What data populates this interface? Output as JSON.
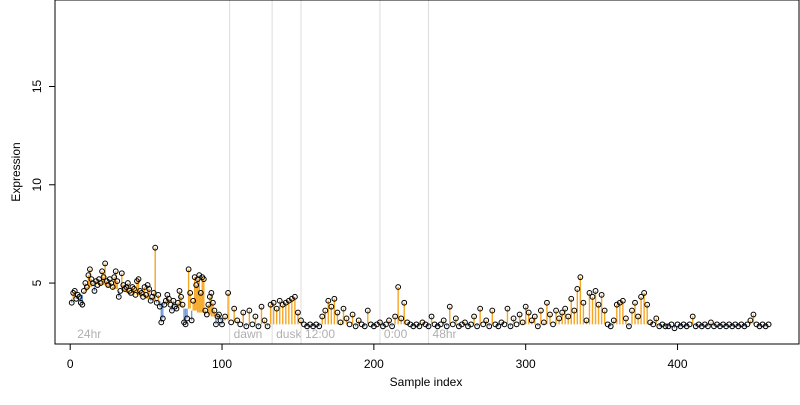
{
  "chart_data": {
    "type": "scatter",
    "title": "",
    "xlabel": "Sample index",
    "ylabel": "Expression",
    "xlim": [
      -10,
      480
    ],
    "ylim": [
      1.9,
      19.4
    ],
    "xticks": [
      0,
      100,
      200,
      300,
      400
    ],
    "yticks": [
      5,
      10,
      15
    ],
    "grid": false,
    "baseline_note": "lollipop stems drawn from a per-sample baseline; orange = above baseline, blue = below",
    "colors": {
      "up": "#f5a623",
      "down": "#6f9bd8",
      "point_stroke": "#000000",
      "phase_line": "#dddddd",
      "phase_text": "#b0b0b0"
    },
    "phases": [
      {
        "label": "24hr",
        "x": 2,
        "line": false
      },
      {
        "label": "dawn",
        "x": 105,
        "line": true
      },
      {
        "label": "dusk",
        "x": 133,
        "line": true
      },
      {
        "label": "12:00",
        "x": 152,
        "line": true
      },
      {
        "label": "0:00",
        "x": 204,
        "line": true
      },
      {
        "label": "48hr",
        "x": 236,
        "line": true
      }
    ],
    "points": [
      [
        1,
        4.0,
        4.2
      ],
      [
        2,
        4.5,
        4.2
      ],
      [
        3,
        4.6,
        4.3
      ],
      [
        4,
        4.2,
        4.3
      ],
      [
        5,
        4.4,
        4.3
      ],
      [
        6,
        4.3,
        4.4
      ],
      [
        7,
        4.0,
        4.4
      ],
      [
        8,
        3.9,
        4.4
      ],
      [
        9,
        4.6,
        4.5
      ],
      [
        10,
        5.0,
        4.6
      ],
      [
        11,
        4.8,
        4.6
      ],
      [
        12,
        5.4,
        4.7
      ],
      [
        13,
        5.7,
        4.8
      ],
      [
        14,
        5.2,
        4.8
      ],
      [
        15,
        5.0,
        4.9
      ],
      [
        16,
        4.6,
        4.9
      ],
      [
        17,
        5.1,
        4.9
      ],
      [
        18,
        4.9,
        4.9
      ],
      [
        19,
        5.2,
        4.9
      ],
      [
        20,
        5.0,
        4.9
      ],
      [
        21,
        5.6,
        4.9
      ],
      [
        22,
        5.3,
        4.9
      ],
      [
        23,
        6.0,
        4.9
      ],
      [
        24,
        5.1,
        4.8
      ],
      [
        25,
        4.9,
        4.8
      ],
      [
        26,
        5.2,
        4.8
      ],
      [
        27,
        5.0,
        4.8
      ],
      [
        28,
        4.8,
        4.7
      ],
      [
        29,
        5.3,
        4.7
      ],
      [
        30,
        5.6,
        4.7
      ],
      [
        31,
        5.1,
        4.7
      ],
      [
        32,
        4.3,
        4.6
      ],
      [
        33,
        4.6,
        4.6
      ],
      [
        34,
        5.5,
        4.6
      ],
      [
        35,
        4.9,
        4.6
      ],
      [
        36,
        4.7,
        4.6
      ],
      [
        37,
        4.8,
        4.5
      ],
      [
        38,
        5.0,
        4.5
      ],
      [
        39,
        4.6,
        4.5
      ],
      [
        40,
        4.5,
        4.5
      ],
      [
        41,
        4.8,
        4.5
      ],
      [
        42,
        4.7,
        4.4
      ],
      [
        43,
        4.4,
        4.4
      ],
      [
        44,
        5.1,
        4.4
      ],
      [
        45,
        5.2,
        4.4
      ],
      [
        46,
        4.6,
        4.3
      ],
      [
        47,
        4.5,
        4.3
      ],
      [
        48,
        4.3,
        4.3
      ],
      [
        49,
        4.8,
        4.3
      ],
      [
        50,
        4.4,
        4.2
      ],
      [
        51,
        4.9,
        4.2
      ],
      [
        52,
        4.7,
        4.2
      ],
      [
        53,
        4.1,
        4.2
      ],
      [
        54,
        4.3,
        4.2
      ],
      [
        55,
        4.5,
        4.1
      ],
      [
        56,
        6.8,
        4.1
      ],
      [
        57,
        4.0,
        4.1
      ],
      [
        58,
        4.4,
        4.1
      ],
      [
        59,
        3.8,
        4.1
      ],
      [
        60,
        3.0,
        4.0
      ],
      [
        61,
        3.2,
        4.0
      ],
      [
        62,
        3.9,
        4.0
      ],
      [
        63,
        4.1,
        4.0
      ],
      [
        64,
        4.4,
        4.0
      ],
      [
        65,
        4.2,
        3.9
      ],
      [
        66,
        3.9,
        3.9
      ],
      [
        67,
        3.6,
        3.9
      ],
      [
        68,
        4.1,
        3.9
      ],
      [
        69,
        3.8,
        3.9
      ],
      [
        70,
        3.7,
        3.8
      ],
      [
        71,
        4.0,
        3.8
      ],
      [
        72,
        4.6,
        3.8
      ],
      [
        73,
        4.3,
        3.8
      ],
      [
        74,
        3.9,
        3.8
      ],
      [
        75,
        3.0,
        3.7
      ],
      [
        76,
        2.9,
        3.7
      ],
      [
        77,
        3.2,
        3.7
      ],
      [
        78,
        5.7,
        3.7
      ],
      [
        79,
        4.5,
        3.7
      ],
      [
        80,
        3.1,
        3.6
      ],
      [
        81,
        4.1,
        3.6
      ],
      [
        82,
        5.3,
        3.6
      ],
      [
        83,
        4.9,
        3.6
      ],
      [
        84,
        5.2,
        3.5
      ],
      [
        85,
        5.4,
        3.5
      ],
      [
        86,
        4.5,
        3.5
      ],
      [
        87,
        5.3,
        3.5
      ],
      [
        88,
        5.2,
        3.5
      ],
      [
        89,
        3.6,
        3.4
      ],
      [
        90,
        3.4,
        3.4
      ],
      [
        91,
        3.9,
        3.4
      ],
      [
        92,
        4.3,
        3.4
      ],
      [
        93,
        4.5,
        3.3
      ],
      [
        94,
        4.0,
        3.3
      ],
      [
        95,
        3.6,
        3.3
      ],
      [
        96,
        2.9,
        3.3
      ],
      [
        97,
        3.3,
        3.2
      ],
      [
        98,
        3.4,
        3.2
      ],
      [
        99,
        3.1,
        3.2
      ],
      [
        100,
        2.9,
        3.2
      ],
      [
        102,
        3.3,
        3.1
      ],
      [
        104,
        4.5,
        3.1
      ],
      [
        106,
        3.0,
        3.0
      ],
      [
        108,
        3.7,
        3.0
      ],
      [
        110,
        3.1,
        3.0
      ],
      [
        112,
        2.9,
        2.9
      ],
      [
        114,
        3.5,
        2.9
      ],
      [
        116,
        2.8,
        2.9
      ],
      [
        118,
        3.6,
        2.9
      ],
      [
        120,
        2.9,
        2.9
      ],
      [
        122,
        3.3,
        2.9
      ],
      [
        124,
        2.8,
        2.9
      ],
      [
        126,
        3.8,
        2.9
      ],
      [
        128,
        3.1,
        2.9
      ],
      [
        130,
        2.8,
        2.9
      ],
      [
        132,
        3.9,
        2.9
      ],
      [
        134,
        4.0,
        2.9
      ],
      [
        136,
        3.7,
        2.9
      ],
      [
        138,
        4.1,
        2.9
      ],
      [
        140,
        3.9,
        2.9
      ],
      [
        142,
        4.0,
        2.9
      ],
      [
        144,
        4.1,
        2.9
      ],
      [
        146,
        4.2,
        2.9
      ],
      [
        148,
        4.3,
        2.9
      ],
      [
        150,
        3.5,
        2.9
      ],
      [
        152,
        3.1,
        2.9
      ],
      [
        154,
        2.9,
        2.9
      ],
      [
        156,
        2.8,
        2.9
      ],
      [
        158,
        2.9,
        2.9
      ],
      [
        160,
        2.8,
        2.9
      ],
      [
        162,
        2.9,
        2.9
      ],
      [
        164,
        2.8,
        2.9
      ],
      [
        166,
        3.3,
        2.9
      ],
      [
        168,
        3.6,
        2.9
      ],
      [
        170,
        4.1,
        2.9
      ],
      [
        172,
        3.8,
        2.9
      ],
      [
        174,
        4.2,
        2.9
      ],
      [
        176,
        3.5,
        2.9
      ],
      [
        178,
        3.0,
        2.9
      ],
      [
        180,
        3.7,
        2.9
      ],
      [
        182,
        3.2,
        2.9
      ],
      [
        184,
        2.9,
        2.9
      ],
      [
        186,
        3.4,
        2.9
      ],
      [
        188,
        2.8,
        2.9
      ],
      [
        190,
        3.1,
        2.9
      ],
      [
        192,
        2.9,
        2.9
      ],
      [
        194,
        2.8,
        2.9
      ],
      [
        196,
        3.6,
        2.9
      ],
      [
        198,
        2.9,
        2.9
      ],
      [
        200,
        2.8,
        2.9
      ],
      [
        202,
        2.9,
        2.9
      ],
      [
        204,
        3.0,
        2.9
      ],
      [
        206,
        2.8,
        2.9
      ],
      [
        208,
        2.9,
        2.9
      ],
      [
        210,
        3.1,
        2.9
      ],
      [
        212,
        2.8,
        2.9
      ],
      [
        214,
        3.3,
        2.9
      ],
      [
        216,
        4.8,
        2.9
      ],
      [
        218,
        3.2,
        2.9
      ],
      [
        220,
        4.0,
        2.9
      ],
      [
        222,
        3.0,
        2.9
      ],
      [
        224,
        2.9,
        2.9
      ],
      [
        226,
        2.8,
        2.9
      ],
      [
        228,
        2.9,
        2.9
      ],
      [
        230,
        2.8,
        2.9
      ],
      [
        232,
        3.0,
        2.9
      ],
      [
        234,
        2.9,
        2.9
      ],
      [
        236,
        2.8,
        2.9
      ],
      [
        238,
        3.3,
        2.9
      ],
      [
        240,
        2.9,
        2.9
      ],
      [
        242,
        2.8,
        2.9
      ],
      [
        244,
        2.9,
        2.9
      ],
      [
        246,
        3.1,
        2.9
      ],
      [
        248,
        2.8,
        2.9
      ],
      [
        250,
        3.8,
        2.9
      ],
      [
        252,
        2.9,
        2.9
      ],
      [
        254,
        3.2,
        2.9
      ],
      [
        256,
        2.8,
        2.9
      ],
      [
        258,
        2.9,
        2.9
      ],
      [
        260,
        3.0,
        2.9
      ],
      [
        262,
        2.8,
        2.9
      ],
      [
        264,
        2.9,
        2.9
      ],
      [
        266,
        3.3,
        2.9
      ],
      [
        268,
        2.8,
        2.9
      ],
      [
        270,
        3.7,
        2.9
      ],
      [
        272,
        2.9,
        2.9
      ],
      [
        274,
        3.1,
        2.9
      ],
      [
        276,
        2.8,
        2.9
      ],
      [
        278,
        3.6,
        2.9
      ],
      [
        280,
        2.9,
        2.9
      ],
      [
        282,
        2.8,
        2.9
      ],
      [
        284,
        3.0,
        2.9
      ],
      [
        286,
        2.9,
        2.9
      ],
      [
        288,
        3.7,
        2.9
      ],
      [
        290,
        2.8,
        2.9
      ],
      [
        292,
        3.2,
        2.9
      ],
      [
        294,
        2.9,
        2.9
      ],
      [
        296,
        3.4,
        2.9
      ],
      [
        298,
        3.0,
        2.9
      ],
      [
        300,
        3.8,
        2.9
      ],
      [
        302,
        3.5,
        2.9
      ],
      [
        304,
        3.1,
        2.9
      ],
      [
        306,
        3.3,
        2.9
      ],
      [
        308,
        2.8,
        2.9
      ],
      [
        310,
        3.6,
        2.9
      ],
      [
        312,
        3.0,
        2.9
      ],
      [
        314,
        4.0,
        2.9
      ],
      [
        316,
        3.4,
        2.9
      ],
      [
        318,
        2.9,
        2.9
      ],
      [
        320,
        3.6,
        2.9
      ],
      [
        322,
        3.2,
        2.9
      ],
      [
        324,
        3.5,
        2.9
      ],
      [
        326,
        3.7,
        2.9
      ],
      [
        328,
        3.3,
        2.9
      ],
      [
        330,
        4.2,
        2.9
      ],
      [
        332,
        3.6,
        2.9
      ],
      [
        334,
        4.7,
        2.9
      ],
      [
        336,
        5.3,
        2.9
      ],
      [
        338,
        4.0,
        2.9
      ],
      [
        340,
        3.1,
        2.9
      ],
      [
        342,
        4.5,
        2.9
      ],
      [
        344,
        4.3,
        2.9
      ],
      [
        346,
        4.6,
        2.9
      ],
      [
        348,
        3.9,
        2.9
      ],
      [
        350,
        4.4,
        2.9
      ],
      [
        352,
        3.6,
        2.9
      ],
      [
        354,
        2.9,
        2.9
      ],
      [
        356,
        2.8,
        2.9
      ],
      [
        358,
        3.1,
        2.9
      ],
      [
        360,
        3.9,
        2.9
      ],
      [
        362,
        4.0,
        2.9
      ],
      [
        364,
        4.1,
        2.9
      ],
      [
        366,
        3.2,
        2.9
      ],
      [
        368,
        2.8,
        2.9
      ],
      [
        370,
        3.6,
        2.9
      ],
      [
        372,
        4.0,
        2.9
      ],
      [
        374,
        3.3,
        2.9
      ],
      [
        376,
        4.3,
        2.9
      ],
      [
        378,
        4.5,
        2.9
      ],
      [
        380,
        3.9,
        2.9
      ],
      [
        382,
        3.0,
        2.9
      ],
      [
        384,
        2.9,
        2.9
      ],
      [
        386,
        3.2,
        2.9
      ],
      [
        388,
        2.8,
        2.9
      ],
      [
        390,
        2.9,
        2.9
      ],
      [
        392,
        2.8,
        2.9
      ],
      [
        394,
        2.8,
        2.9
      ],
      [
        396,
        2.9,
        2.9
      ],
      [
        398,
        2.7,
        2.9
      ],
      [
        400,
        2.9,
        2.9
      ],
      [
        402,
        2.8,
        2.9
      ],
      [
        404,
        2.9,
        2.9
      ],
      [
        406,
        2.8,
        2.9
      ],
      [
        408,
        2.9,
        2.9
      ],
      [
        410,
        3.3,
        2.9
      ],
      [
        412,
        2.8,
        2.9
      ],
      [
        414,
        2.9,
        2.9
      ],
      [
        416,
        2.8,
        2.9
      ],
      [
        418,
        2.9,
        2.9
      ],
      [
        420,
        2.8,
        2.9
      ],
      [
        422,
        3.0,
        2.9
      ],
      [
        424,
        2.8,
        2.9
      ],
      [
        426,
        2.9,
        2.9
      ],
      [
        428,
        2.8,
        2.9
      ],
      [
        430,
        2.9,
        2.9
      ],
      [
        432,
        2.8,
        2.9
      ],
      [
        434,
        2.9,
        2.9
      ],
      [
        436,
        2.8,
        2.9
      ],
      [
        438,
        2.9,
        2.9
      ],
      [
        440,
        2.8,
        2.9
      ],
      [
        442,
        2.9,
        2.9
      ],
      [
        444,
        2.8,
        2.9
      ],
      [
        446,
        2.9,
        2.9
      ],
      [
        448,
        3.1,
        2.9
      ],
      [
        450,
        3.4,
        2.9
      ],
      [
        452,
        2.9,
        2.9
      ],
      [
        454,
        2.8,
        2.9
      ],
      [
        456,
        2.9,
        2.9
      ],
      [
        458,
        2.8,
        2.9
      ],
      [
        460,
        2.9,
        2.9
      ]
    ]
  }
}
